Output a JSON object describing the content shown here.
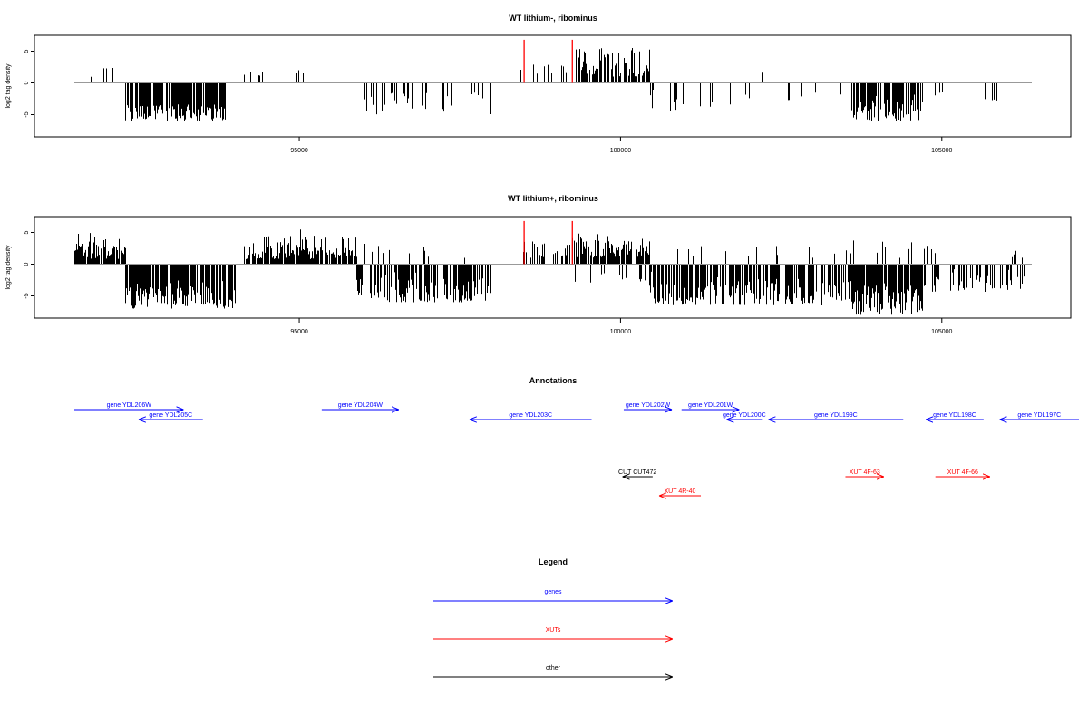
{
  "chart_data": [
    {
      "type": "bar",
      "title": "WT lithium-, ribominus",
      "ylabel": "log2 tag density",
      "xlim": [
        91500,
        106400
      ],
      "ylim": [
        -8.5,
        7.5
      ],
      "xticks": [
        95000,
        100000,
        105000
      ],
      "yticks": [
        -5,
        0,
        5
      ],
      "highlight_positions": [
        98500,
        99250
      ],
      "highlight_color": "#ff0000",
      "bar_color": "#000000",
      "segments": [
        {
          "from": 91500,
          "to": 92200,
          "density": 0.12,
          "lo": 0.8,
          "hi": 3.6
        },
        {
          "from": 92300,
          "to": 93850,
          "density": 0.85,
          "lo": -6.0,
          "hi": -2.5
        },
        {
          "from": 94150,
          "to": 94450,
          "density": 0.12,
          "lo": 1.0,
          "hi": 2.6
        },
        {
          "from": 94800,
          "to": 95100,
          "density": 0.07,
          "lo": 1.5,
          "hi": 3.5
        },
        {
          "from": 95500,
          "to": 95750,
          "density": 0.06,
          "lo": 1.5,
          "hi": 3.2
        },
        {
          "from": 95900,
          "to": 98000,
          "density": 0.3,
          "lo": -5.0,
          "hi": -0.5
        },
        {
          "from": 98450,
          "to": 99200,
          "density": 0.25,
          "lo": 1.2,
          "hi": 3.8
        },
        {
          "from": 99300,
          "to": 100450,
          "density": 0.65,
          "lo": 1.0,
          "hi": 6.8
        },
        {
          "from": 100450,
          "to": 101000,
          "density": 0.15,
          "lo": -4.5,
          "hi": -1.0
        },
        {
          "from": 101200,
          "to": 102000,
          "density": 0.1,
          "lo": -4.0,
          "hi": -1.0
        },
        {
          "from": 101800,
          "to": 102200,
          "density": 0.03,
          "lo": 1.5,
          "hi": 2.5
        },
        {
          "from": 102500,
          "to": 103500,
          "density": 0.05,
          "lo": -3.0,
          "hi": -1.0
        },
        {
          "from": 103600,
          "to": 104700,
          "density": 0.8,
          "lo": -6.0,
          "hi": -1.5
        },
        {
          "from": 104900,
          "to": 106200,
          "density": 0.05,
          "lo": -3.0,
          "hi": -1.0
        }
      ]
    },
    {
      "type": "bar",
      "title": "WT lithium+, ribominus",
      "ylabel": "log2 tag density",
      "xlim": [
        91500,
        106400
      ],
      "ylim": [
        -8.5,
        7.5
      ],
      "xticks": [
        95000,
        100000,
        105000
      ],
      "yticks": [
        -5,
        0,
        5
      ],
      "highlight_positions": [
        98500,
        99250
      ],
      "highlight_color": "#ff0000",
      "bar_color": "#000000",
      "segments": [
        {
          "from": 91500,
          "to": 92300,
          "density": 0.85,
          "lo": 0.8,
          "hi": 5.0
        },
        {
          "from": 92300,
          "to": 94000,
          "density": 0.9,
          "lo": -7.0,
          "hi": -2.5
        },
        {
          "from": 94150,
          "to": 95900,
          "density": 0.9,
          "lo": 0.8,
          "hi": 5.5
        },
        {
          "from": 95900,
          "to": 98000,
          "density": 0.75,
          "lo": -6.0,
          "hi": -1.0
        },
        {
          "from": 96000,
          "to": 98000,
          "density": 0.08,
          "lo": 1.0,
          "hi": 3.5
        },
        {
          "from": 98450,
          "to": 99250,
          "density": 0.5,
          "lo": 1.0,
          "hi": 4.5
        },
        {
          "from": 99250,
          "to": 100450,
          "density": 0.7,
          "lo": 1.0,
          "hi": 6.0
        },
        {
          "from": 99250,
          "to": 100500,
          "density": 0.1,
          "lo": -3.0,
          "hi": -1.0
        },
        {
          "from": 100450,
          "to": 103600,
          "density": 0.65,
          "lo": -6.5,
          "hi": -1.0
        },
        {
          "from": 100500,
          "to": 103600,
          "density": 0.1,
          "lo": 1.0,
          "hi": 3.5
        },
        {
          "from": 103600,
          "to": 104700,
          "density": 0.95,
          "lo": -8.0,
          "hi": -2.0
        },
        {
          "from": 103600,
          "to": 105000,
          "density": 0.05,
          "lo": 1.0,
          "hi": 4.5
        },
        {
          "from": 104700,
          "to": 106300,
          "density": 0.45,
          "lo": -4.5,
          "hi": -0.8
        },
        {
          "from": 104700,
          "to": 106300,
          "density": 0.05,
          "lo": 1.0,
          "hi": 3.0
        }
      ]
    }
  ],
  "annotations": {
    "title": "Annotations",
    "tracks": [
      {
        "label": "gene YDL206W",
        "start": 91500,
        "end": 93200,
        "dir": "right",
        "row": 0,
        "color": "#0000ff"
      },
      {
        "label": "gene YDL205C",
        "start": 93500,
        "end": 92500,
        "dir": "left",
        "row": 1,
        "color": "#0000ff"
      },
      {
        "label": "gene YDL204W",
        "start": 95350,
        "end": 96550,
        "dir": "right",
        "row": 0,
        "color": "#0000ff"
      },
      {
        "label": "gene YDL203C",
        "start": 99550,
        "end": 97650,
        "dir": "left",
        "row": 1,
        "color": "#0000ff"
      },
      {
        "label": "gene YDL202W",
        "start": 100050,
        "end": 100800,
        "dir": "right",
        "row": 0,
        "color": "#0000ff"
      },
      {
        "label": "gene YDL201W",
        "start": 100950,
        "end": 101850,
        "dir": "right",
        "row": 0,
        "color": "#0000ff"
      },
      {
        "label": "gene YDL200C",
        "start": 102200,
        "end": 101650,
        "dir": "left",
        "row": 1,
        "color": "#0000ff"
      },
      {
        "label": "gene YDL199C",
        "start": 104400,
        "end": 102300,
        "dir": "left",
        "row": 1,
        "color": "#0000ff"
      },
      {
        "label": "gene YDL198C",
        "start": 105650,
        "end": 104750,
        "dir": "left",
        "row": 1,
        "color": "#0000ff"
      },
      {
        "label": "gene YDL197C",
        "start": 107500,
        "end": 105900,
        "dir": "left",
        "row": 1,
        "color": "#0000ff"
      },
      {
        "label": "CUT CUT472",
        "start": 100500,
        "end": 100030,
        "dir": "left",
        "row": 2,
        "color": "#000000"
      },
      {
        "label": "XUT 4R-40",
        "start": 101250,
        "end": 100600,
        "dir": "left",
        "row": 3,
        "color": "#ff0000"
      },
      {
        "label": "XUT 4F-63",
        "start": 103500,
        "end": 104100,
        "dir": "right",
        "row": 2,
        "color": "#ff0000"
      },
      {
        "label": "XUT 4F-66",
        "start": 104900,
        "end": 105750,
        "dir": "right",
        "row": 2,
        "color": "#ff0000"
      }
    ]
  },
  "legend": {
    "title": "Legend",
    "items": [
      {
        "label": "genes",
        "color": "#0000ff"
      },
      {
        "label": "XUTs",
        "color": "#ff0000"
      },
      {
        "label": "other",
        "color": "#000000"
      }
    ]
  }
}
